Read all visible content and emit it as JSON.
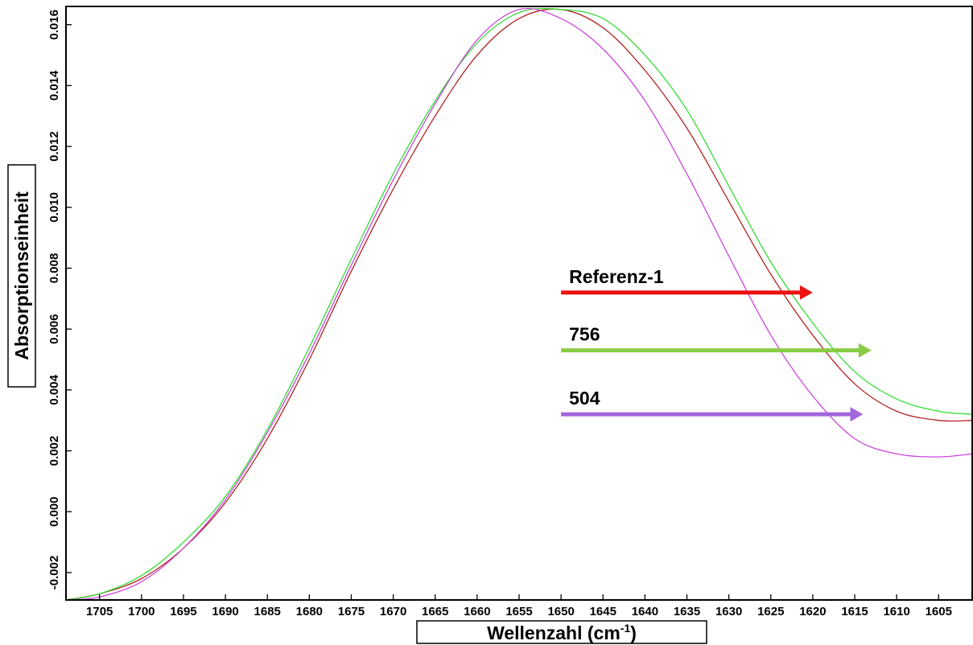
{
  "chart_data": {
    "type": "line",
    "xlabel": "Wellenzahl (cm",
    "xlabel_sup": "-1",
    "xlabel_close": ")",
    "ylabel": "Absorptionseinheit",
    "xlim": [
      1709,
      1601
    ],
    "ylim": [
      -0.0029,
      0.0166
    ],
    "x_reversed": true,
    "grid": false,
    "x_ticks": [
      1705,
      1700,
      1695,
      1690,
      1685,
      1680,
      1675,
      1670,
      1665,
      1660,
      1655,
      1650,
      1645,
      1640,
      1635,
      1630,
      1625,
      1620,
      1615,
      1610,
      1605
    ],
    "y_ticks": [
      -0.002,
      0.0,
      0.002,
      0.004,
      0.006,
      0.008,
      0.01,
      0.012,
      0.014,
      0.016
    ],
    "y_tick_labels": [
      "-0.002",
      "0.000",
      "0.002",
      "0.004",
      "0.006",
      "0.008",
      "0.010",
      "0.012",
      "0.014",
      "0.016"
    ],
    "x": [
      1709,
      1705,
      1700,
      1695,
      1690,
      1685,
      1680,
      1675,
      1670,
      1665,
      1660,
      1655,
      1650,
      1645,
      1640,
      1635,
      1630,
      1625,
      1620,
      1615,
      1610,
      1605,
      1601
    ],
    "series": [
      {
        "name": "Referenz-1",
        "color": "#b22222",
        "values": [
          -0.0029,
          -0.0027,
          -0.0022,
          -0.0012,
          0.0003,
          0.0024,
          0.005,
          0.0079,
          0.0106,
          0.013,
          0.015,
          0.0162,
          0.0165,
          0.0159,
          0.0145,
          0.0126,
          0.0102,
          0.0078,
          0.0058,
          0.0042,
          0.0033,
          0.003,
          0.003
        ]
      },
      {
        "name": "756",
        "color": "#33dd33",
        "values": [
          -0.0029,
          -0.0027,
          -0.0021,
          -0.001,
          0.0005,
          0.0027,
          0.0054,
          0.0083,
          0.0111,
          0.0135,
          0.0154,
          0.0164,
          0.0165,
          0.0162,
          0.015,
          0.0132,
          0.0107,
          0.0082,
          0.0062,
          0.0046,
          0.0037,
          0.0033,
          0.0032
        ]
      },
      {
        "name": "504",
        "color": "#cc44dd",
        "values": [
          -0.0029,
          -0.0028,
          -0.0023,
          -0.0012,
          0.0004,
          0.0026,
          0.0052,
          0.0081,
          0.0109,
          0.0134,
          0.0155,
          0.0165,
          0.0162,
          0.0152,
          0.0135,
          0.0111,
          0.0084,
          0.0058,
          0.0038,
          0.0024,
          0.0019,
          0.0018,
          0.0019
        ]
      }
    ],
    "annotations": [
      {
        "label": "Referenz-1",
        "arrow_color": "#ee1111",
        "y": 0.0072,
        "x_start": 1650,
        "x_end": 1620
      },
      {
        "label": "756",
        "arrow_color": "#88cc44",
        "y": 0.0053,
        "x_start": 1650,
        "x_end": 1613
      },
      {
        "label": "504",
        "arrow_color": "#a366dd",
        "y": 0.0032,
        "x_start": 1650,
        "x_end": 1614
      }
    ]
  }
}
